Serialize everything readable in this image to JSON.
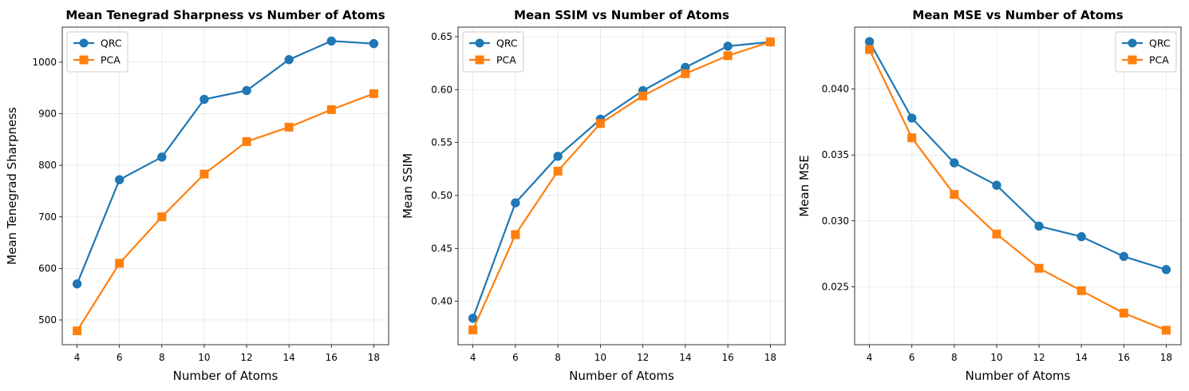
{
  "chart_data": [
    {
      "type": "line",
      "title": "Mean Tenegrad Sharpness vs Number of Atoms",
      "xlabel": "Number of Atoms",
      "ylabel": "Mean Tenegrad Sharpness",
      "x": [
        4,
        6,
        8,
        10,
        12,
        14,
        16,
        18
      ],
      "xticks": [
        "4",
        "6",
        "8",
        "10",
        "12",
        "14",
        "16",
        "18"
      ],
      "xlim": [
        3.3,
        18.7
      ],
      "ylim": [
        452.0,
        1068.0
      ],
      "yticks": [
        "500",
        "600",
        "700",
        "800",
        "900",
        "1000"
      ],
      "ytick_values": [
        500,
        600,
        700,
        800,
        900,
        1000
      ],
      "grid": true,
      "legend_position": "top-left",
      "series": [
        {
          "name": "QRC",
          "marker": "circle",
          "color": "#1f77b4",
          "values": [
            570,
            772,
            816,
            928,
            945,
            1005,
            1041,
            1036
          ]
        },
        {
          "name": "PCA",
          "marker": "square",
          "color": "#ff7f0e",
          "values": [
            479,
            610,
            700,
            783,
            846,
            874,
            908,
            939
          ]
        }
      ]
    },
    {
      "type": "line",
      "title": "Mean SSIM vs Number of Atoms",
      "xlabel": "Number of Atoms",
      "ylabel": "Mean SSIM",
      "x": [
        4,
        6,
        8,
        10,
        12,
        14,
        16,
        18
      ],
      "xticks": [
        "4",
        "6",
        "8",
        "10",
        "12",
        "14",
        "16",
        "18"
      ],
      "xlim": [
        3.3,
        18.7
      ],
      "ylim": [
        0.359,
        0.659
      ],
      "yticks": [
        "0.40",
        "0.45",
        "0.50",
        "0.55",
        "0.60",
        "0.65"
      ],
      "ytick_values": [
        0.4,
        0.45,
        0.5,
        0.55,
        0.6,
        0.65
      ],
      "grid": true,
      "legend_position": "top-left",
      "series": [
        {
          "name": "QRC",
          "marker": "circle",
          "color": "#1f77b4",
          "values": [
            0.384,
            0.493,
            0.537,
            0.572,
            0.599,
            0.621,
            0.641,
            0.645
          ]
        },
        {
          "name": "PCA",
          "marker": "square",
          "color": "#ff7f0e",
          "values": [
            0.373,
            0.463,
            0.523,
            0.568,
            0.594,
            0.615,
            0.632,
            0.645
          ]
        }
      ]
    },
    {
      "type": "line",
      "title": "Mean MSE vs Number of Atoms",
      "xlabel": "Number of Atoms",
      "ylabel": "Mean MSE",
      "x": [
        4,
        6,
        8,
        10,
        12,
        14,
        16,
        18
      ],
      "xticks": [
        "4",
        "6",
        "8",
        "10",
        "12",
        "14",
        "16",
        "18"
      ],
      "xlim": [
        3.3,
        18.7
      ],
      "ylim": [
        0.0206,
        0.0447
      ],
      "yticks": [
        "0.025",
        "0.030",
        "0.035",
        "0.040"
      ],
      "ytick_values": [
        0.025,
        0.03,
        0.035,
        0.04
      ],
      "grid": true,
      "legend_position": "top-right",
      "series": [
        {
          "name": "QRC",
          "marker": "circle",
          "color": "#1f77b4",
          "values": [
            0.0436,
            0.0378,
            0.0344,
            0.0327,
            0.0296,
            0.0288,
            0.0273,
            0.0263
          ]
        },
        {
          "name": "PCA",
          "marker": "square",
          "color": "#ff7f0e",
          "values": [
            0.043,
            0.0363,
            0.032,
            0.029,
            0.0264,
            0.0247,
            0.023,
            0.0217
          ]
        }
      ]
    }
  ]
}
